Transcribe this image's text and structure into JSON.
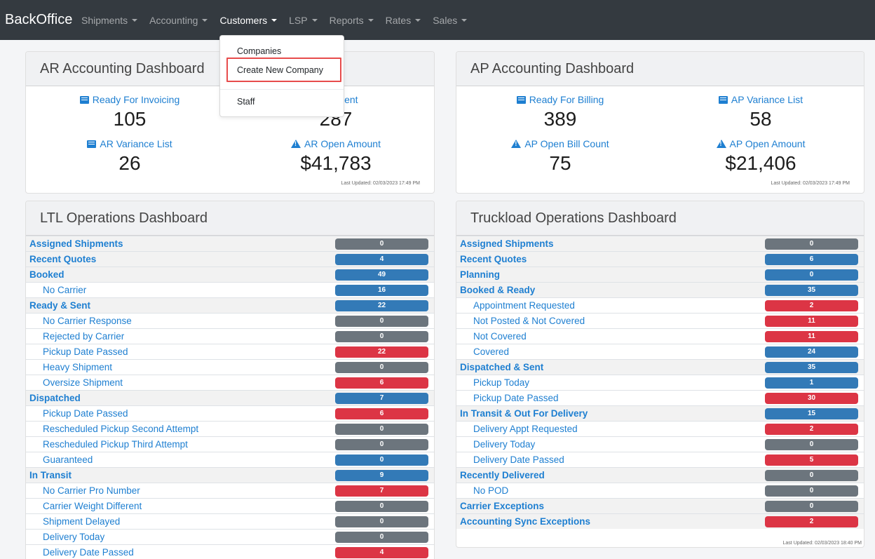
{
  "navbar": {
    "brand": "BackOffice",
    "items": [
      {
        "label": "Shipments",
        "active": false
      },
      {
        "label": "Accounting",
        "active": false
      },
      {
        "label": "Customers",
        "active": true
      },
      {
        "label": "LSP",
        "active": false
      },
      {
        "label": "Reports",
        "active": false
      },
      {
        "label": "Rates",
        "active": false
      },
      {
        "label": "Sales",
        "active": false
      }
    ]
  },
  "customers_menu": {
    "items": [
      "Companies",
      "Create New Company",
      "Staff"
    ],
    "highlighted": "Create New Company"
  },
  "ar_dashboard": {
    "title": "AR Accounting Dashboard",
    "stats": [
      {
        "label": "Ready For Invoicing",
        "value": "105",
        "icon": "list-icon"
      },
      {
        "label": "or Sent",
        "value": "287",
        "icon": "list-icon"
      },
      {
        "label": "AR Variance List",
        "value": "26",
        "icon": "list-icon"
      },
      {
        "label": "AR Open Amount",
        "value": "$41,783",
        "icon": "warning-icon"
      }
    ],
    "updated": "Last Updated: 02/03/2023 17:49 PM"
  },
  "ap_dashboard": {
    "title": "AP Accounting Dashboard",
    "stats": [
      {
        "label": "Ready For Billing",
        "value": "389",
        "icon": "list-icon"
      },
      {
        "label": "AP Variance List",
        "value": "58",
        "icon": "list-icon"
      },
      {
        "label": "AP Open Bill Count",
        "value": "75",
        "icon": "warning-icon"
      },
      {
        "label": "AP Open Amount",
        "value": "$21,406",
        "icon": "warning-icon"
      }
    ],
    "updated": "Last Updated: 02/03/2023 17:49 PM"
  },
  "ltl_dashboard": {
    "title": "LTL Operations Dashboard",
    "rows": [
      {
        "label": "Assigned Shipments",
        "value": "0",
        "level": 0,
        "color": "gray"
      },
      {
        "label": "Recent Quotes",
        "value": "4",
        "level": 0,
        "color": "blue"
      },
      {
        "label": "Booked",
        "value": "49",
        "level": 0,
        "color": "blue"
      },
      {
        "label": "No Carrier",
        "value": "16",
        "level": 1,
        "color": "blue"
      },
      {
        "label": "Ready & Sent",
        "value": "22",
        "level": 0,
        "color": "blue"
      },
      {
        "label": "No Carrier Response",
        "value": "0",
        "level": 1,
        "color": "gray"
      },
      {
        "label": "Rejected by Carrier",
        "value": "0",
        "level": 1,
        "color": "gray"
      },
      {
        "label": "Pickup Date Passed",
        "value": "22",
        "level": 1,
        "color": "red"
      },
      {
        "label": "Heavy Shipment",
        "value": "0",
        "level": 1,
        "color": "gray"
      },
      {
        "label": "Oversize Shipment",
        "value": "6",
        "level": 1,
        "color": "red"
      },
      {
        "label": "Dispatched",
        "value": "7",
        "level": 0,
        "color": "blue"
      },
      {
        "label": "Pickup Date Passed",
        "value": "6",
        "level": 1,
        "color": "red"
      },
      {
        "label": "Rescheduled Pickup Second Attempt",
        "value": "0",
        "level": 1,
        "color": "gray"
      },
      {
        "label": "Rescheduled Pickup Third Attempt",
        "value": "0",
        "level": 1,
        "color": "gray"
      },
      {
        "label": "Guaranteed",
        "value": "0",
        "level": 1,
        "color": "blue"
      },
      {
        "label": "In Transit",
        "value": "9",
        "level": 0,
        "color": "blue"
      },
      {
        "label": "No Carrier Pro Number",
        "value": "7",
        "level": 1,
        "color": "red"
      },
      {
        "label": "Carrier Weight Different",
        "value": "0",
        "level": 1,
        "color": "gray"
      },
      {
        "label": "Shipment Delayed",
        "value": "0",
        "level": 1,
        "color": "gray"
      },
      {
        "label": "Delivery Today",
        "value": "0",
        "level": 1,
        "color": "gray"
      },
      {
        "label": "Delivery Date Passed",
        "value": "4",
        "level": 1,
        "color": "red"
      }
    ]
  },
  "tl_dashboard": {
    "title": "Truckload Operations Dashboard",
    "rows": [
      {
        "label": "Assigned Shipments",
        "value": "0",
        "level": 0,
        "color": "gray"
      },
      {
        "label": "Recent Quotes",
        "value": "6",
        "level": 0,
        "color": "blue"
      },
      {
        "label": "Planning",
        "value": "0",
        "level": 0,
        "color": "blue"
      },
      {
        "label": "Booked & Ready",
        "value": "35",
        "level": 0,
        "color": "blue"
      },
      {
        "label": "Appointment Requested",
        "value": "2",
        "level": 1,
        "color": "red"
      },
      {
        "label": "Not Posted & Not Covered",
        "value": "11",
        "level": 1,
        "color": "red"
      },
      {
        "label": "Not Covered",
        "value": "11",
        "level": 1,
        "color": "red"
      },
      {
        "label": "Covered",
        "value": "24",
        "level": 1,
        "color": "blue"
      },
      {
        "label": "Dispatched & Sent",
        "value": "35",
        "level": 0,
        "color": "blue"
      },
      {
        "label": "Pickup Today",
        "value": "1",
        "level": 1,
        "color": "blue"
      },
      {
        "label": "Pickup Date Passed",
        "value": "30",
        "level": 1,
        "color": "red"
      },
      {
        "label": "In Transit & Out For Delivery",
        "value": "15",
        "level": 0,
        "color": "blue"
      },
      {
        "label": "Delivery Appt Requested",
        "value": "2",
        "level": 1,
        "color": "red"
      },
      {
        "label": "Delivery Today",
        "value": "0",
        "level": 1,
        "color": "gray"
      },
      {
        "label": "Delivery Date Passed",
        "value": "5",
        "level": 1,
        "color": "red"
      },
      {
        "label": "Recently Delivered",
        "value": "0",
        "level": 0,
        "color": "gray"
      },
      {
        "label": "No POD",
        "value": "0",
        "level": 1,
        "color": "gray"
      },
      {
        "label": "Carrier Exceptions",
        "value": "0",
        "level": 0,
        "color": "gray"
      },
      {
        "label": "Accounting Sync Exceptions",
        "value": "2",
        "level": 0,
        "color": "red"
      }
    ],
    "updated": "Last Updated: 02/03/2023 18:40 PM"
  },
  "colors": {
    "navbar": "#343a40",
    "link": "#1e7fd1",
    "gray": "#6c757d",
    "blue": "#337ab7",
    "red": "#dc3545",
    "highlight": "#e74c4c"
  }
}
